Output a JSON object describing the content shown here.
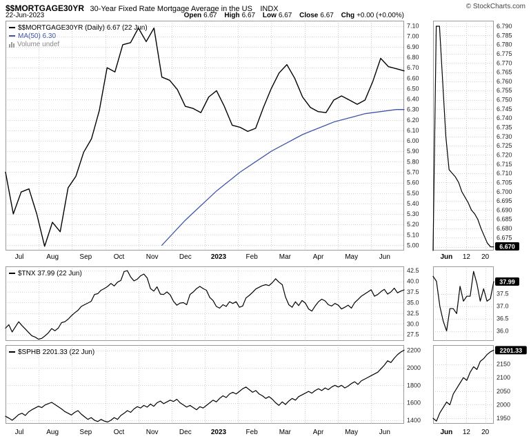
{
  "header": {
    "symbol": "$$MORTGAGE30YR",
    "description": "30-Year Fixed Rate Mortgage Average in the US",
    "exchange": "INDX",
    "copyright": "© StockCharts.com",
    "date": "22-Jun-2023",
    "quote": {
      "open_label": "Open",
      "open": "6.67",
      "high_label": "High",
      "high": "6.67",
      "low_label": "Low",
      "low": "6.67",
      "close_label": "Close",
      "close": "6.67",
      "chg_label": "Chg",
      "chg": "+0.00 (+0.00%)"
    }
  },
  "legends": {
    "mortgage": "$$MORTGAGE30YR (Daily) 6.67 (22 Jun)",
    "ma": "MA(50) 6.30",
    "volume": "Volume undef",
    "tnx": "$TNX 37.99 (22 Jun)",
    "sphb": "$SPHB 2201.33 (22 Jun)"
  },
  "colors": {
    "price": "#000000",
    "ma": "#4055a8",
    "grid": "#d0d0d0",
    "border": "#999999",
    "tick": "#222222",
    "volume_text": "#888888",
    "badge_bg": "#000000",
    "badge_fg": "#ffffff"
  },
  "months": [
    {
      "label": "Jul"
    },
    {
      "label": "Aug"
    },
    {
      "label": "Sep"
    },
    {
      "label": "Oct"
    },
    {
      "label": "Nov"
    },
    {
      "label": "Dec"
    },
    {
      "label": "2023",
      "bold": true
    },
    {
      "label": "Feb"
    },
    {
      "label": "Mar"
    },
    {
      "label": "Apr"
    },
    {
      "label": "May"
    },
    {
      "label": "Jun"
    }
  ],
  "mini_xticks": [
    {
      "label": "Jun",
      "bold": true,
      "pos": 0.22
    },
    {
      "label": "12",
      "pos": 0.55
    },
    {
      "label": "20",
      "pos": 0.86
    }
  ],
  "chart_data": [
    {
      "id": "mortgage_main",
      "type": "line",
      "name": "$$MORTGAGE30YR (Daily) with MA(50)",
      "ylim": [
        4.95,
        7.15
      ],
      "yticks": {
        "values": [
          7.1,
          7.0,
          6.9,
          6.8,
          6.7,
          6.6,
          6.5,
          6.4,
          6.3,
          6.2,
          6.1,
          6.0,
          5.9,
          5.8,
          5.7,
          5.6,
          5.5,
          5.4,
          5.3,
          5.2,
          5.1,
          5.0
        ],
        "labels": [
          "7.10",
          "7.00",
          "6.90",
          "6.80",
          "6.70",
          "6.60",
          "6.50",
          "6.40",
          "6.30",
          "6.20",
          "6.10",
          "6.00",
          "5.90",
          "5.80",
          "5.70",
          "5.60",
          "5.50",
          "5.40",
          "5.30",
          "5.20",
          "5.10",
          "5.00"
        ]
      },
      "series": [
        {
          "name": "price",
          "color": "price",
          "width": 1.4,
          "values": [
            5.7,
            5.3,
            5.51,
            5.54,
            5.3,
            4.99,
            5.22,
            5.13,
            5.55,
            5.66,
            5.89,
            6.02,
            6.29,
            6.7,
            6.66,
            6.92,
            6.94,
            7.08,
            6.95,
            7.08,
            6.61,
            6.58,
            6.49,
            6.33,
            6.31,
            6.27,
            6.42,
            6.48,
            6.33,
            6.15,
            6.13,
            6.09,
            6.12,
            6.32,
            6.5,
            6.65,
            6.73,
            6.6,
            6.42,
            6.32,
            6.28,
            6.27,
            6.39,
            6.43,
            6.39,
            6.35,
            6.39,
            6.57,
            6.79,
            6.71,
            6.69,
            6.67
          ]
        },
        {
          "name": "ma50",
          "color": "ma",
          "width": 1.3,
          "values": [
            null,
            null,
            null,
            null,
            null,
            null,
            null,
            null,
            null,
            null,
            null,
            null,
            null,
            null,
            null,
            null,
            null,
            null,
            null,
            null,
            5.0,
            5.08,
            5.16,
            5.24,
            5.31,
            5.38,
            5.45,
            5.52,
            5.58,
            5.64,
            5.7,
            5.75,
            5.8,
            5.85,
            5.9,
            5.94,
            5.98,
            6.02,
            6.06,
            6.09,
            6.12,
            6.15,
            6.18,
            6.2,
            6.22,
            6.24,
            6.26,
            6.27,
            6.28,
            6.29,
            6.3,
            6.3
          ]
        }
      ]
    },
    {
      "id": "mortgage_mini",
      "type": "line",
      "name": "$$MORTGAGE30YR last month zoom",
      "ylim": [
        6.668,
        6.793
      ],
      "yticks": {
        "values": [
          6.79,
          6.785,
          6.78,
          6.775,
          6.77,
          6.765,
          6.76,
          6.755,
          6.75,
          6.745,
          6.74,
          6.735,
          6.73,
          6.725,
          6.72,
          6.715,
          6.71,
          6.705,
          6.7,
          6.695,
          6.69,
          6.685,
          6.68,
          6.675,
          6.67
        ],
        "labels": [
          "6.790",
          "6.785",
          "6.780",
          "6.775",
          "6.770",
          "6.765",
          "6.760",
          "6.755",
          "6.750",
          "6.745",
          "6.740",
          "6.735",
          "6.730",
          "6.725",
          "6.720",
          "6.715",
          "6.710",
          "6.705",
          "6.700",
          "6.695",
          "6.690",
          "6.685",
          "6.680",
          "6.675",
          "6.670"
        ]
      },
      "series": [
        {
          "name": "price",
          "color": "price",
          "width": 1.2,
          "values": [
            6.57,
            6.79,
            6.79,
            6.76,
            6.73,
            6.712,
            6.71,
            6.708,
            6.705,
            6.7,
            6.697,
            6.694,
            6.69,
            6.688,
            6.685,
            6.68,
            6.676,
            6.672,
            6.67,
            6.67
          ]
        }
      ],
      "badge": {
        "text": "6.670",
        "value": 6.67
      }
    },
    {
      "id": "tnx_main",
      "type": "line",
      "name": "$TNX",
      "ylim": [
        26.0,
        43.5
      ],
      "yticks": {
        "values": [
          42.5,
          40.0,
          37.5,
          35.0,
          32.5,
          30.0,
          27.5
        ],
        "labels": [
          "42.5",
          "40.0",
          "37.5",
          "35.0",
          "32.5",
          "30.0",
          "27.5"
        ]
      },
      "series": [
        {
          "name": "price",
          "color": "price",
          "width": 1.2,
          "values": [
            29.0,
            29.8,
            28.1,
            29.3,
            30.5,
            29.6,
            28.8,
            28.0,
            27.2,
            26.9,
            26.4,
            26.6,
            27.2,
            27.9,
            28.9,
            28.4,
            29.0,
            30.3,
            30.5,
            31.1,
            31.9,
            32.6,
            33.2,
            34.1,
            34.5,
            34.9,
            35.3,
            36.9,
            37.1,
            37.9,
            38.3,
            38.8,
            39.5,
            38.9,
            39.8,
            40.2,
            42.3,
            42.5,
            41.0,
            40.1,
            40.5,
            41.3,
            41.7,
            40.8,
            38.3,
            37.7,
            38.7,
            37.0,
            36.9,
            37.5,
            36.8,
            35.3,
            34.4,
            34.9,
            35.0,
            34.5,
            36.9,
            37.5,
            38.3,
            38.8,
            38.3,
            37.9,
            36.2,
            35.5,
            34.1,
            33.7,
            34.5,
            34.1,
            35.2,
            34.8,
            35.2,
            33.9,
            34.2,
            36.1,
            36.7,
            37.4,
            38.2,
            38.6,
            39.0,
            39.2,
            39.0,
            39.7,
            40.6,
            39.8,
            39.2,
            36.3,
            34.5,
            33.9,
            35.2,
            34.3,
            35.5,
            34.9,
            33.5,
            33.0,
            34.2,
            35.2,
            35.8,
            35.4,
            34.5,
            34.2,
            34.8,
            34.4,
            33.5,
            33.9,
            34.4,
            33.7,
            35.0,
            35.7,
            36.5,
            37.0,
            37.5,
            38.0,
            36.5,
            36.9,
            37.6,
            38.1,
            37.0,
            37.5,
            38.4,
            37.3,
            37.7,
            37.99
          ]
        }
      ]
    },
    {
      "id": "tnx_mini",
      "type": "line",
      "name": "$TNX last month zoom",
      "ylim": [
        35.6,
        38.6
      ],
      "yticks": {
        "values": [
          37.5,
          37.0,
          36.5,
          36.0
        ],
        "labels": [
          "37.5",
          "37.0",
          "36.5",
          "36.0"
        ]
      },
      "series": [
        {
          "name": "price",
          "color": "price",
          "width": 1.2,
          "values": [
            38.2,
            38.0,
            37.0,
            36.4,
            36.0,
            36.9,
            36.9,
            36.7,
            37.8,
            37.2,
            37.4,
            37.4,
            38.4,
            37.9,
            37.2,
            37.7,
            37.2,
            37.3,
            37.99
          ]
        }
      ],
      "badge": {
        "text": "37.99",
        "value": 37.99
      }
    },
    {
      "id": "sphb_main",
      "type": "line",
      "name": "$SPHB",
      "ylim": [
        1360,
        2260
      ],
      "yticks": {
        "values": [
          2200,
          2000,
          1800,
          1600,
          1400
        ],
        "labels": [
          "2200",
          "2000",
          "1800",
          "1600",
          "1400"
        ]
      },
      "series": [
        {
          "name": "price",
          "color": "price",
          "width": 1.2,
          "values": [
            1445,
            1425,
            1400,
            1430,
            1465,
            1480,
            1455,
            1495,
            1520,
            1540,
            1560,
            1545,
            1575,
            1590,
            1605,
            1580,
            1555,
            1530,
            1500,
            1480,
            1460,
            1490,
            1510,
            1470,
            1440,
            1410,
            1430,
            1400,
            1385,
            1410,
            1390,
            1380,
            1400,
            1430,
            1410,
            1455,
            1480,
            1510,
            1490,
            1530,
            1555,
            1540,
            1570,
            1550,
            1585,
            1560,
            1600,
            1620,
            1590,
            1610,
            1630,
            1615,
            1640,
            1600,
            1575,
            1550,
            1570,
            1545,
            1520,
            1555,
            1540,
            1570,
            1600,
            1630,
            1610,
            1650,
            1680,
            1660,
            1700,
            1720,
            1700,
            1730,
            1760,
            1780,
            1750,
            1720,
            1740,
            1700,
            1680,
            1650,
            1670,
            1640,
            1600,
            1570,
            1610,
            1580,
            1620,
            1650,
            1630,
            1670,
            1690,
            1710,
            1730,
            1710,
            1740,
            1760,
            1740,
            1770,
            1750,
            1780,
            1800,
            1780,
            1800,
            1770,
            1790,
            1820,
            1840,
            1810,
            1850,
            1870,
            1890,
            1910,
            1930,
            1950,
            1990,
            2030,
            2080,
            2060,
            2110,
            2150,
            2180,
            2201.33
          ]
        }
      ]
    },
    {
      "id": "sphb_mini",
      "type": "line",
      "name": "$SPHB last month zoom",
      "ylim": [
        1930,
        2220
      ],
      "yticks": {
        "values": [
          2150,
          2100,
          2050,
          2000,
          1950
        ],
        "labels": [
          "2150",
          "2100",
          "2050",
          "2000",
          "1950"
        ]
      },
      "series": [
        {
          "name": "price",
          "color": "price",
          "width": 1.2,
          "values": [
            1950,
            1940,
            1970,
            1990,
            2010,
            2000,
            2040,
            2060,
            2080,
            2100,
            2090,
            2120,
            2140,
            2130,
            2160,
            2170,
            2185,
            2195,
            2201.33
          ]
        }
      ],
      "badge": {
        "text": "2201.33",
        "value": 2201.33
      }
    }
  ]
}
